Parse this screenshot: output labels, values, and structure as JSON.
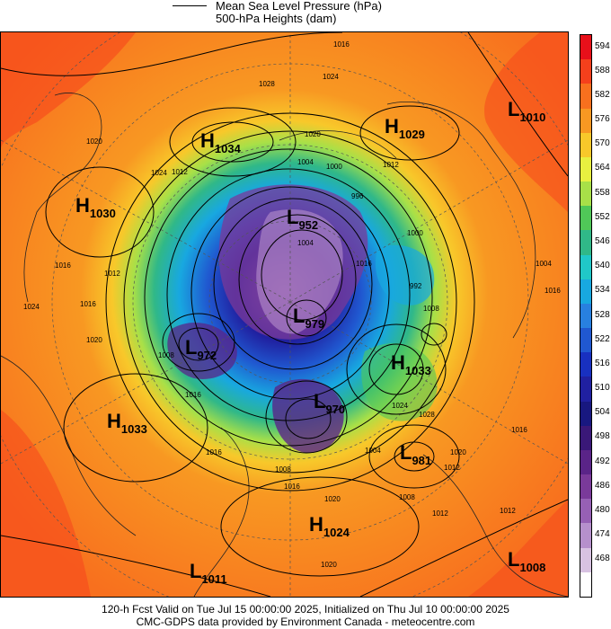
{
  "legend": {
    "mslp_label": "Mean Sea Level Pressure (hPa)",
    "heights_label": "500-hPa Heights (dam)"
  },
  "colorbar": {
    "unit": "dam",
    "levels": [
      {
        "label": "594",
        "color": "#e8101a"
      },
      {
        "label": "588",
        "color": "#f5401c"
      },
      {
        "label": "582",
        "color": "#f8701e"
      },
      {
        "label": "576",
        "color": "#f89822"
      },
      {
        "label": "570",
        "color": "#f8c82a"
      },
      {
        "label": "564",
        "color": "#e8f040"
      },
      {
        "label": "558",
        "color": "#a8e048"
      },
      {
        "label": "552",
        "color": "#50c858"
      },
      {
        "label": "546",
        "color": "#30b888"
      },
      {
        "label": "540",
        "color": "#20c8c8"
      },
      {
        "label": "534",
        "color": "#18a8e0"
      },
      {
        "label": "528",
        "color": "#2880e0"
      },
      {
        "label": "522",
        "color": "#2058d0"
      },
      {
        "label": "516",
        "color": "#1830c0"
      },
      {
        "label": "510",
        "color": "#2020a0"
      },
      {
        "label": "504",
        "color": "#181880"
      },
      {
        "label": "498",
        "color": "#3a1878"
      },
      {
        "label": "492",
        "color": "#5a2488"
      },
      {
        "label": "486",
        "color": "#7a3a9a"
      },
      {
        "label": "480",
        "color": "#9660b4"
      },
      {
        "label": "474",
        "color": "#b690cc"
      },
      {
        "label": "468",
        "color": "#d8c2e2"
      },
      {
        "label": "",
        "color": "#ffffff"
      }
    ]
  },
  "pressure_centers": [
    {
      "letter": "H",
      "value": "1034"
    },
    {
      "letter": "H",
      "value": "1029"
    },
    {
      "letter": "L",
      "value": "1010"
    },
    {
      "letter": "H",
      "value": "1030"
    },
    {
      "letter": "L",
      "value": "952"
    },
    {
      "letter": "L",
      "value": "979"
    },
    {
      "letter": "L",
      "value": "972"
    },
    {
      "letter": "H",
      "value": "1033"
    },
    {
      "letter": "L",
      "value": "970"
    },
    {
      "letter": "H",
      "value": "1033"
    },
    {
      "letter": "L",
      "value": "981"
    },
    {
      "letter": "H",
      "value": "1024"
    },
    {
      "letter": "L",
      "value": "1011"
    },
    {
      "letter": "L",
      "value": "1008"
    }
  ],
  "isobar_labels": [
    "1016",
    "1024",
    "1028",
    "1020",
    "1012",
    "1020",
    "1024",
    "1016",
    "1012",
    "1004",
    "1000",
    "996",
    "1000",
    "1004",
    "1008",
    "1012",
    "1016",
    "1016",
    "1024",
    "1020",
    "1008",
    "1016",
    "1024",
    "1028",
    "1020",
    "1016",
    "1020",
    "1008",
    "1004",
    "1016",
    "1012",
    "1012",
    "1016",
    "1020",
    "1008",
    "1012",
    "992",
    "1004",
    "1016"
  ],
  "footer": {
    "line1": "120-h Fcst Valid on Tue Jul 15 00:00:00 2025, Initialized on Thu Jul 10 00:00:00 2025",
    "line2": "CMC-GDPS data provided by Environment Canada - meteocentre.com"
  }
}
